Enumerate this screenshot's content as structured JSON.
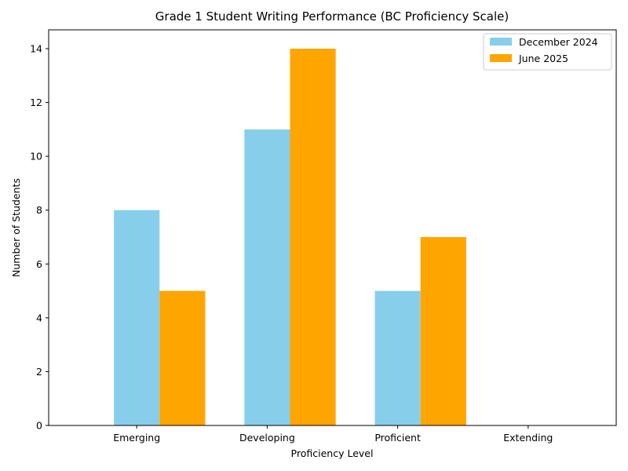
{
  "chart_data": {
    "type": "bar",
    "title": "Grade 1 Student Writing Performance (BC Proficiency Scale)",
    "xlabel": "Proficiency Level",
    "ylabel": "Number of Students",
    "categories": [
      "Emerging",
      "Developing",
      "Proficient",
      "Extending"
    ],
    "series": [
      {
        "name": "December 2024",
        "values": [
          8,
          11,
          5,
          0
        ],
        "color": "#87ceeb"
      },
      {
        "name": "June 2025",
        "values": [
          5,
          14,
          7,
          0
        ],
        "color": "#ffa500"
      }
    ],
    "ylim": [
      0,
      14.7
    ],
    "yticks": [
      0,
      2,
      4,
      6,
      8,
      10,
      12,
      14
    ],
    "grid": false,
    "legend_position": "top-right"
  }
}
